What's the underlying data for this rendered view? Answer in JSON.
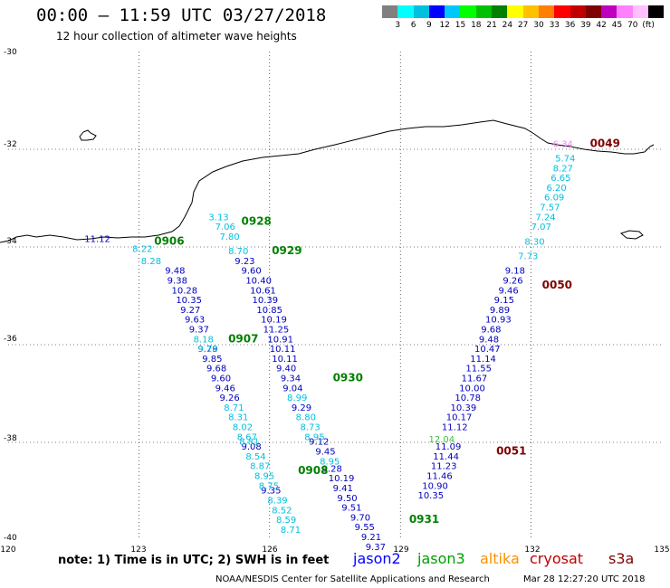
{
  "title": "00:00 – 11:59 UTC 03/27/2018",
  "subtitle": "12 hour collection of altimeter wave heights",
  "legend": {
    "colors": [
      "#808080",
      "#00ffff",
      "#00c0e0",
      "#0000ff",
      "#00c8ff",
      "#00ff00",
      "#00c000",
      "#008000",
      "#ffff00",
      "#ffc000",
      "#ff8000",
      "#ff0000",
      "#c00000",
      "#800000",
      "#c000c0",
      "#ff80ff",
      "#ffc0ff",
      "#000000"
    ],
    "ticks": [
      "3",
      "6",
      "9",
      "12",
      "15",
      "18",
      "21",
      "24",
      "27",
      "30",
      "33",
      "36",
      "39",
      "42",
      "45",
      "70",
      "(ft)"
    ]
  },
  "axes": {
    "lat_labels": [
      "-30",
      "-32",
      "-34",
      "-36",
      "-38",
      "-40"
    ],
    "lon_labels": [
      "120",
      "123",
      "126",
      "129",
      "132",
      "135"
    ]
  },
  "tracks": [
    {
      "sat": "jason2",
      "color": "#0000c0",
      "points": [
        {
          "lat": -34.55,
          "lon": 123.6,
          "v": "9.48"
        },
        {
          "lat": -34.75,
          "lon": 123.65,
          "v": "9.38"
        },
        {
          "lat": -34.95,
          "lon": 123.75,
          "v": "10.28"
        },
        {
          "lat": -35.15,
          "lon": 123.85,
          "v": "10.35"
        },
        {
          "lat": -35.35,
          "lon": 123.95,
          "v": "9.27"
        },
        {
          "lat": -35.55,
          "lon": 124.05,
          "v": "9.63"
        },
        {
          "lat": -35.75,
          "lon": 124.15,
          "v": "9.37"
        },
        {
          "lat": -36.15,
          "lon": 124.35,
          "v": "9.79"
        },
        {
          "lat": -36.35,
          "lon": 124.45,
          "v": "9.85"
        },
        {
          "lat": -36.55,
          "lon": 124.55,
          "v": "9.68"
        },
        {
          "lat": -36.75,
          "lon": 124.65,
          "v": "9.60"
        },
        {
          "lat": -36.95,
          "lon": 124.75,
          "v": "9.46"
        },
        {
          "lat": -37.15,
          "lon": 124.85,
          "v": "9.26"
        },
        {
          "lat": -38.15,
          "lon": 125.35,
          "v": "9.08"
        },
        {
          "lat": -39.05,
          "lon": 125.8,
          "v": "9.35"
        }
      ]
    },
    {
      "sat": "jason2",
      "color": "#0000c0",
      "points": [
        {
          "lat": -34.35,
          "lon": 125.2,
          "v": "9.23"
        },
        {
          "lat": -34.55,
          "lon": 125.35,
          "v": "9.60"
        },
        {
          "lat": -34.75,
          "lon": 125.45,
          "v": "10.40"
        },
        {
          "lat": -34.95,
          "lon": 125.55,
          "v": "10.61"
        },
        {
          "lat": -35.15,
          "lon": 125.6,
          "v": "10.39"
        },
        {
          "lat": -35.35,
          "lon": 125.7,
          "v": "10.85"
        },
        {
          "lat": -35.55,
          "lon": 125.8,
          "v": "10.19"
        },
        {
          "lat": -35.75,
          "lon": 125.85,
          "v": "11.25"
        },
        {
          "lat": -35.95,
          "lon": 125.95,
          "v": "10.91"
        },
        {
          "lat": -36.15,
          "lon": 126.0,
          "v": "10.11"
        },
        {
          "lat": -36.35,
          "lon": 126.05,
          "v": "10.11"
        },
        {
          "lat": -36.55,
          "lon": 126.15,
          "v": "9.40"
        },
        {
          "lat": -36.75,
          "lon": 126.25,
          "v": "9.34"
        },
        {
          "lat": -36.95,
          "lon": 126.3,
          "v": "9.04"
        },
        {
          "lat": -37.35,
          "lon": 126.5,
          "v": "9.29"
        },
        {
          "lat": -38.05,
          "lon": 126.9,
          "v": "9.12"
        },
        {
          "lat": -38.25,
          "lon": 127.05,
          "v": "9.45"
        },
        {
          "lat": -38.6,
          "lon": 127.2,
          "v": "9.28"
        },
        {
          "lat": -38.8,
          "lon": 127.35,
          "v": "10.19"
        },
        {
          "lat": -39.0,
          "lon": 127.45,
          "v": "9.41"
        },
        {
          "lat": -39.2,
          "lon": 127.55,
          "v": "9.50"
        },
        {
          "lat": -39.4,
          "lon": 127.65,
          "v": "9.51"
        },
        {
          "lat": -39.6,
          "lon": 127.85,
          "v": "9.70"
        },
        {
          "lat": -39.8,
          "lon": 127.95,
          "v": "9.55"
        },
        {
          "lat": -40.0,
          "lon": 128.1,
          "v": "9.21"
        },
        {
          "lat": -40.2,
          "lon": 128.2,
          "v": "9.37"
        }
      ]
    },
    {
      "sat": "jason2",
      "color": "#0000c0",
      "points": [
        {
          "lat": -34.55,
          "lon": 131.4,
          "v": "9.18"
        },
        {
          "lat": -34.75,
          "lon": 131.35,
          "v": "9.26"
        },
        {
          "lat": -34.95,
          "lon": 131.25,
          "v": "9.46"
        },
        {
          "lat": -35.15,
          "lon": 131.15,
          "v": "9.15"
        },
        {
          "lat": -35.35,
          "lon": 131.05,
          "v": "9.89"
        },
        {
          "lat": -35.55,
          "lon": 130.95,
          "v": "10.93"
        },
        {
          "lat": -35.75,
          "lon": 130.85,
          "v": "9.68"
        },
        {
          "lat": -35.95,
          "lon": 130.8,
          "v": "9.48"
        },
        {
          "lat": -36.15,
          "lon": 130.7,
          "v": "10.47"
        },
        {
          "lat": -36.35,
          "lon": 130.6,
          "v": "11.14"
        },
        {
          "lat": -36.55,
          "lon": 130.5,
          "v": "11.55"
        },
        {
          "lat": -36.75,
          "lon": 130.4,
          "v": "11.67"
        },
        {
          "lat": -36.95,
          "lon": 130.35,
          "v": "10.00"
        },
        {
          "lat": -37.15,
          "lon": 130.25,
          "v": "10.78"
        },
        {
          "lat": -37.35,
          "lon": 130.15,
          "v": "10.39"
        },
        {
          "lat": -37.55,
          "lon": 130.05,
          "v": "10.17"
        },
        {
          "lat": -37.75,
          "lon": 129.95,
          "v": "11.12"
        },
        {
          "lat": -38.15,
          "lon": 129.8,
          "v": "11.09"
        },
        {
          "lat": -38.35,
          "lon": 129.75,
          "v": "11.44"
        },
        {
          "lat": -38.55,
          "lon": 129.7,
          "v": "11.23"
        },
        {
          "lat": -38.75,
          "lon": 129.6,
          "v": "11.46"
        },
        {
          "lat": -38.95,
          "lon": 129.5,
          "v": "10.90"
        },
        {
          "lat": -39.15,
          "lon": 129.4,
          "v": "10.35"
        }
      ]
    },
    {
      "sat": "jason3",
      "color": "#00c0e0",
      "points": [
        {
          "lat": -33.45,
          "lon": 124.6,
          "v": "3.13"
        },
        {
          "lat": -33.65,
          "lon": 124.75,
          "v": "7.06"
        },
        {
          "lat": -33.85,
          "lon": 124.85,
          "v": "7.80"
        },
        {
          "lat": -34.15,
          "lon": 125.05,
          "v": "8.70"
        },
        {
          "lat": -34.1,
          "lon": 122.85,
          "v": "8.22"
        },
        {
          "lat": -34.35,
          "lon": 123.05,
          "v": "8.28"
        },
        {
          "lat": -35.95,
          "lon": 124.25,
          "v": "8.18"
        },
        {
          "lat": -36.15,
          "lon": 124.35,
          "v": "9.28"
        },
        {
          "lat": -37.35,
          "lon": 124.95,
          "v": "8.71"
        },
        {
          "lat": -37.55,
          "lon": 125.05,
          "v": "8.31"
        },
        {
          "lat": -37.75,
          "lon": 125.15,
          "v": "8.02"
        },
        {
          "lat": -37.95,
          "lon": 125.25,
          "v": "8.67"
        },
        {
          "lat": -38.05,
          "lon": 125.3,
          "v": "8.81"
        },
        {
          "lat": -38.35,
          "lon": 125.45,
          "v": "8.54"
        },
        {
          "lat": -38.55,
          "lon": 125.55,
          "v": "8.87"
        },
        {
          "lat": -38.75,
          "lon": 125.65,
          "v": "8.95"
        },
        {
          "lat": -38.95,
          "lon": 125.75,
          "v": "8.75"
        },
        {
          "lat": -39.25,
          "lon": 125.95,
          "v": "8.39"
        },
        {
          "lat": -39.45,
          "lon": 126.05,
          "v": "8.52"
        },
        {
          "lat": -39.65,
          "lon": 126.15,
          "v": "8.59"
        },
        {
          "lat": -39.85,
          "lon": 126.25,
          "v": "8.71"
        },
        {
          "lat": -37.15,
          "lon": 126.4,
          "v": "8.99"
        },
        {
          "lat": -37.55,
          "lon": 126.6,
          "v": "8.80"
        },
        {
          "lat": -37.75,
          "lon": 126.7,
          "v": "8.73"
        },
        {
          "lat": -37.95,
          "lon": 126.8,
          "v": "8.95"
        },
        {
          "lat": -38.45,
          "lon": 127.15,
          "v": "8.95"
        },
        {
          "lat": -32.25,
          "lon": 132.55,
          "v": "5.74"
        },
        {
          "lat": -32.45,
          "lon": 132.5,
          "v": "8.27"
        },
        {
          "lat": -32.65,
          "lon": 132.45,
          "v": "6.65"
        },
        {
          "lat": -32.85,
          "lon": 132.35,
          "v": "6.20"
        },
        {
          "lat": -33.05,
          "lon": 132.3,
          "v": "6.09"
        },
        {
          "lat": -33.25,
          "lon": 132.2,
          "v": "7.57"
        },
        {
          "lat": -33.45,
          "lon": 132.1,
          "v": "7.24"
        },
        {
          "lat": -33.65,
          "lon": 132.0,
          "v": "7.07"
        },
        {
          "lat": -33.95,
          "lon": 131.85,
          "v": "8.30"
        },
        {
          "lat": -34.25,
          "lon": 131.7,
          "v": "7.73"
        }
      ]
    },
    {
      "sat": "misc",
      "color": "#40c040",
      "points": [
        {
          "lat": -38.0,
          "lon": 129.65,
          "v": "12.04"
        }
      ]
    },
    {
      "sat": "misc",
      "color": "#0000c0",
      "points": [
        {
          "lat": -33.9,
          "lon": 121.75,
          "v": "11.12"
        }
      ]
    },
    {
      "sat": "misc",
      "color": "#ff80ff",
      "points": [
        {
          "lat": -31.95,
          "lon": 132.5,
          "v": "6.34"
        }
      ]
    }
  ],
  "times": [
    {
      "lat": -33.55,
      "lon": 125.35,
      "t": "0928",
      "color": "#008000"
    },
    {
      "lat": -33.95,
      "lon": 123.35,
      "t": "0906",
      "color": "#008000"
    },
    {
      "lat": -34.15,
      "lon": 126.05,
      "t": "0929",
      "color": "#008000"
    },
    {
      "lat": -35.95,
      "lon": 125.05,
      "t": "0907",
      "color": "#008000"
    },
    {
      "lat": -36.75,
      "lon": 127.45,
      "t": "0930",
      "color": "#008000"
    },
    {
      "lat": -38.65,
      "lon": 126.65,
      "t": "0908",
      "color": "#008000"
    },
    {
      "lat": -39.65,
      "lon": 129.2,
      "t": "0931",
      "color": "#008000"
    },
    {
      "lat": -31.95,
      "lon": 133.35,
      "t": "0049",
      "color": "#800000"
    },
    {
      "lat": -34.85,
      "lon": 132.25,
      "t": "0050",
      "color": "#800000"
    },
    {
      "lat": -38.25,
      "lon": 131.2,
      "t": "0051",
      "color": "#800000"
    }
  ],
  "footer": {
    "note": "note: 1) Time is in UTC; 2) SWH is in feet",
    "sats": [
      {
        "name": "jason2",
        "color": "#0000ff",
        "x": 390
      },
      {
        "name": "jason3",
        "color": "#00a000",
        "x": 461
      },
      {
        "name": "altika",
        "color": "#ff9000",
        "x": 530
      },
      {
        "name": "cryosat",
        "color": "#c00000",
        "x": 585
      },
      {
        "name": "s3a",
        "color": "#800000",
        "x": 672
      }
    ],
    "credit": "NOAA/NESDIS Center for Satellite Applications and Research",
    "timestamp": "Mar 28 12:27:20 UTC 2018"
  }
}
